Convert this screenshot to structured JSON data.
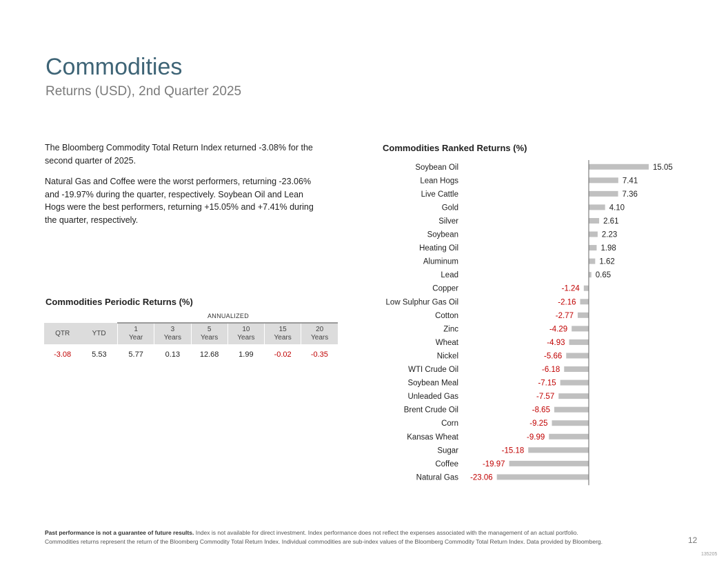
{
  "header": {
    "title": "Commodities",
    "subtitle": "Returns (USD), 2nd Quarter 2025"
  },
  "summary": {
    "para1": "The Bloomberg Commodity Total Return Index returned -3.08% for the second quarter of 2025.",
    "para2": "Natural Gas and Coffee were the worst performers, returning -23.06% and -19.97% during the quarter, respectively. Soybean Oil and Lean Hogs were the best performers, returning +15.05% and +7.41% during the quarter, respectively."
  },
  "periodic": {
    "title": "Commodities Periodic Returns (%)",
    "annualized_label": "ANNUALIZED",
    "headers": [
      "QTR",
      "YTD",
      "1\nYear",
      "3\nYears",
      "5\nYears",
      "10\nYears",
      "15\nYears",
      "20\nYears"
    ],
    "values": [
      "-3.08",
      "5.53",
      "5.77",
      "0.13",
      "12.68",
      "1.99",
      "-0.02",
      "-0.35"
    ],
    "negative_color": "#c00000"
  },
  "chart_data": {
    "type": "bar",
    "orientation": "horizontal",
    "title": "Commodities Ranked Returns (%)",
    "categories": [
      "Soybean Oil",
      "Lean Hogs",
      "Live Cattle",
      "Gold",
      "Silver",
      "Soybean",
      "Heating Oil",
      "Aluminum",
      "Lead",
      "Copper",
      "Low Sulphur Gas Oil",
      "Cotton",
      "Zinc",
      "Wheat",
      "Nickel",
      "WTI Crude Oil",
      "Soybean Meal",
      "Unleaded Gas",
      "Brent Crude Oil",
      "Corn",
      "Kansas Wheat",
      "Sugar",
      "Coffee",
      "Natural Gas"
    ],
    "values": [
      15.05,
      7.41,
      7.36,
      4.1,
      2.61,
      2.23,
      1.98,
      1.62,
      0.65,
      -1.24,
      -2.16,
      -2.77,
      -4.29,
      -4.93,
      -5.66,
      -6.18,
      -7.15,
      -7.57,
      -8.65,
      -9.25,
      -9.99,
      -15.18,
      -19.97,
      -23.06
    ],
    "labels": [
      "15.05",
      "7.41",
      "7.36",
      "4.10",
      "2.61",
      "2.23",
      "1.98",
      "1.62",
      "0.65",
      "-1.24",
      "-2.16",
      "-2.77",
      "-4.29",
      "-4.93",
      "-5.66",
      "-6.18",
      "-7.15",
      "-7.57",
      "-8.65",
      "-9.25",
      "-9.99",
      "-15.18",
      "-19.97",
      "-23.06"
    ],
    "xlim": [
      -23.06,
      15.05
    ],
    "bar_color": "#c0c0c0",
    "positive_label_color": "#222222",
    "negative_label_color": "#c00000",
    "grid": false
  },
  "footer": {
    "bold_text": "Past performance is not a guarantee of future results.",
    "line1": " Index is not available for direct investment. Index performance does not reflect the expenses associated with the management of an actual portfolio.",
    "line2": "Commodities returns represent the return of the Bloomberg Commodity Total Return Index. Individual commodities are sub-index values of the Bloomberg Commodity Total Return Index. Data provided by Bloomberg.",
    "page_number": "12",
    "code": "135205"
  }
}
